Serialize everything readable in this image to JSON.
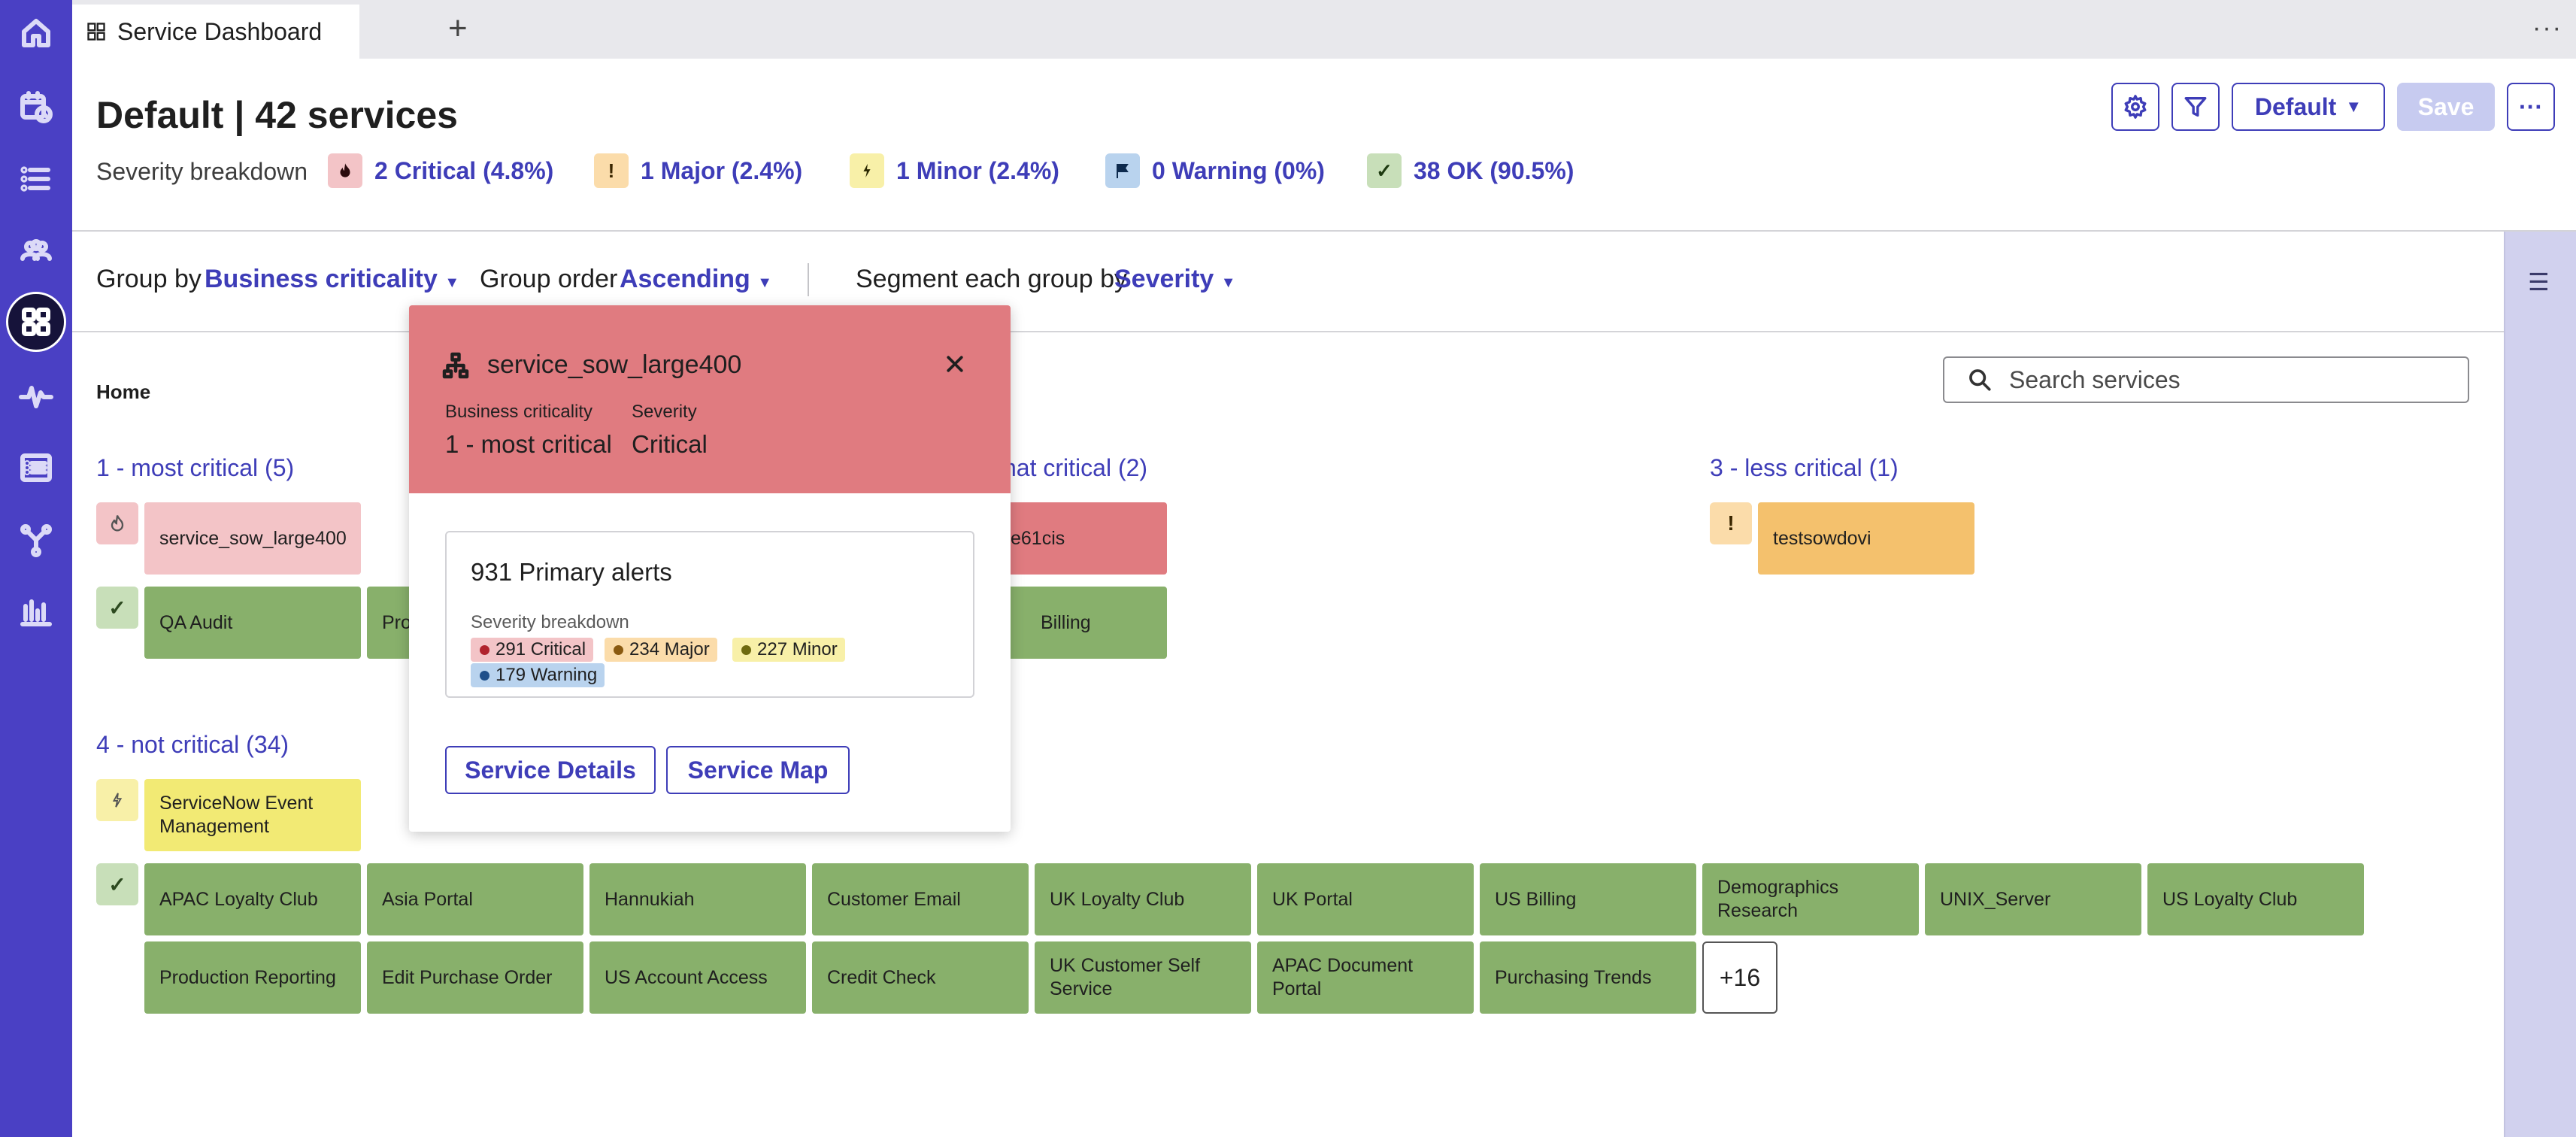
{
  "tab": {
    "title": "Service Dashboard",
    "add_label": "+",
    "more_label": "···"
  },
  "header": {
    "title": "Default | 42 services",
    "severity_label": "Severity breakdown",
    "severity": [
      {
        "label": "2 Critical (4.8%)",
        "glyph": "🔥",
        "color": "#f3c4c7"
      },
      {
        "label": "1 Major (2.4%)",
        "glyph": "!",
        "color": "#fbdcaa"
      },
      {
        "label": "1 Minor (2.4%)",
        "glyph": "ϟ",
        "color": "#f8f0a8"
      },
      {
        "label": "0 Warning (0%)",
        "glyph": "⚑",
        "color": "#b9d3ee"
      },
      {
        "label": "38 OK (90.5%)",
        "glyph": "✓",
        "color": "#c8dfb9"
      }
    ],
    "view_label": "Default",
    "save_label": "Save",
    "more_label": "···"
  },
  "grouping": {
    "group_by_label": "Group by",
    "group_by_value": "Business criticality",
    "order_label": "Group order",
    "order_value": "Ascending",
    "segment_label": "Segment each group by",
    "segment_value": "Severity"
  },
  "breadcrumb": "Home",
  "search": {
    "placeholder": "Search services"
  },
  "groups": {
    "g1": {
      "title": "1 - most critical (5)",
      "critical": [
        "service_sow_large400"
      ],
      "ok": [
        "QA Audit",
        "Pro"
      ]
    },
    "g2": {
      "title": "hat critical (2)",
      "critical": [
        "e61cis"
      ],
      "ok": [
        "Billing"
      ]
    },
    "g3": {
      "title": "3 - less critical (1)",
      "major": [
        "testsowdovi"
      ]
    },
    "g4": {
      "title": "4 - not critical (34)",
      "minor": [
        "ServiceNow Event Management"
      ],
      "ok_row1": [
        "APAC Loyalty Club",
        "Asia Portal",
        "Hannukiah",
        "Customer Email",
        "UK Loyalty Club",
        "UK Portal",
        "US Billing",
        "Demographics Research",
        "UNIX_Server",
        "US Loyalty Club"
      ],
      "ok_row2": [
        "Production Reporting",
        "Edit Purchase Order",
        "US Account Access",
        "Credit Check",
        "UK Customer Self Service",
        "APAC Document Portal",
        "Purchasing Trends"
      ],
      "more_label": "+16"
    }
  },
  "popup": {
    "title": "service_sow_large400",
    "criticality_label": "Business criticality",
    "criticality_value": "1 - most critical",
    "severity_label": "Severity",
    "severity_value": "Critical",
    "alerts_title": "931 Primary alerts",
    "alerts_sub": "Severity breakdown",
    "chips": [
      {
        "label": "291 Critical",
        "bg": "#f3c4c7",
        "dot": "#b0232d"
      },
      {
        "label": "234 Major",
        "bg": "#fbdcaa",
        "dot": "#8a5a10"
      },
      {
        "label": "227 Minor",
        "bg": "#f8f0a8",
        "dot": "#6e6a10"
      },
      {
        "label": "179 Warning",
        "bg": "#b9d3ee",
        "dot": "#1f4f8a"
      }
    ],
    "details_label": "Service Details",
    "map_label": "Service Map"
  }
}
